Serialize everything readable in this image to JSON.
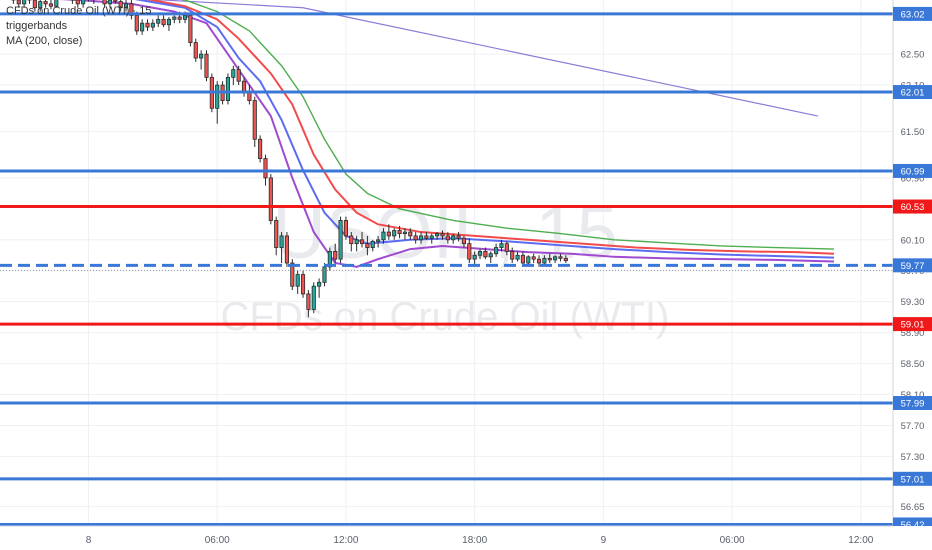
{
  "legend": {
    "line1": "CFDs on Crude Oil (WTI) · 15",
    "line2": "triggerbands",
    "line3": "MA (200, close)"
  },
  "watermark": {
    "symbol": "USOIL, 15",
    "name": "CFDs on Crude Oil (WTI)"
  },
  "colors": {
    "blue_level": "#3a78d8",
    "red_level": "#f01818",
    "candle_up": "#26a69a",
    "candle_down": "#ef5350",
    "ema_red": "#f24b4b",
    "ema_blue": "#5b6cf0",
    "ema_green": "#4fae4f",
    "ema_purple": "#a04ad0",
    "ma200": "#8e7ad8"
  },
  "chart_data": {
    "type": "candlestick",
    "ylim": [
      56.4,
      63.2
    ],
    "y_ticks": [
      "62.50",
      "62.10",
      "61.50",
      "60.90",
      "60.10",
      "59.70",
      "59.30",
      "58.90",
      "58.50",
      "58.10",
      "57.70",
      "57.30",
      "56.65"
    ],
    "x_ticks": [
      {
        "label": "8",
        "bar": 12
      },
      {
        "label": "06:00",
        "bar": 36
      },
      {
        "label": "12:00",
        "bar": 60
      },
      {
        "label": "18:00",
        "bar": 84
      },
      {
        "label": "9",
        "bar": 108
      },
      {
        "label": "06:00",
        "bar": 132
      },
      {
        "label": "12:00",
        "bar": 156
      }
    ],
    "x_bars_visible": [
      -4.5,
      162
    ],
    "horizontal_levels": [
      {
        "value": 63.02,
        "label": "63.02",
        "color": "blue"
      },
      {
        "value": 62.01,
        "label": "62.01",
        "color": "blue"
      },
      {
        "value": 60.99,
        "label": "60.99",
        "color": "blue"
      },
      {
        "value": 60.53,
        "label": "60.53",
        "color": "red"
      },
      {
        "value": 59.01,
        "label": "59.01",
        "color": "red"
      },
      {
        "value": 57.99,
        "label": "57.99",
        "color": "blue"
      },
      {
        "value": 57.01,
        "label": "57.01",
        "color": "blue"
      },
      {
        "value": 56.42,
        "label": "56.42",
        "color": "blue"
      }
    ],
    "current_price": {
      "value": 59.77,
      "label": "59.77"
    },
    "candles_ohlc": [
      [
        63.3,
        63.35,
        63.2,
        63.25
      ],
      [
        63.25,
        63.28,
        63.15,
        63.2
      ],
      [
        63.2,
        63.25,
        63.1,
        63.15
      ],
      [
        63.15,
        63.3,
        63.1,
        63.25
      ],
      [
        63.25,
        63.3,
        63.15,
        63.2
      ],
      [
        63.2,
        63.25,
        63.05,
        63.1
      ],
      [
        63.1,
        63.2,
        63.05,
        63.18
      ],
      [
        63.18,
        63.25,
        63.1,
        63.15
      ],
      [
        63.15,
        63.2,
        63.08,
        63.12
      ],
      [
        63.12,
        63.3,
        63.1,
        63.28
      ],
      [
        63.28,
        63.35,
        63.2,
        63.3
      ],
      [
        63.3,
        63.35,
        63.22,
        63.25
      ],
      [
        63.25,
        63.3,
        63.15,
        63.2
      ],
      [
        63.2,
        63.28,
        63.1,
        63.15
      ],
      [
        63.15,
        63.28,
        63.1,
        63.25
      ],
      [
        63.25,
        63.3,
        63.18,
        63.22
      ],
      [
        63.22,
        63.3,
        63.15,
        63.28
      ],
      [
        63.28,
        63.35,
        63.2,
        63.25
      ],
      [
        63.25,
        63.3,
        63.1,
        63.15
      ],
      [
        63.15,
        63.25,
        63.1,
        63.2
      ],
      [
        63.2,
        63.25,
        63.15,
        63.18
      ],
      [
        63.18,
        63.22,
        63.05,
        63.1
      ],
      [
        63.1,
        63.2,
        63.05,
        63.15
      ],
      [
        63.15,
        63.2,
        62.95,
        63.0
      ],
      [
        63.0,
        63.05,
        62.75,
        62.8
      ],
      [
        62.8,
        62.95,
        62.75,
        62.9
      ],
      [
        62.9,
        62.95,
        62.8,
        62.85
      ],
      [
        62.85,
        62.95,
        62.8,
        62.9
      ],
      [
        62.9,
        63.0,
        62.85,
        62.95
      ],
      [
        62.95,
        63.0,
        62.85,
        62.88
      ],
      [
        62.88,
        62.98,
        62.8,
        62.95
      ],
      [
        62.95,
        63.0,
        62.9,
        62.98
      ],
      [
        62.98,
        63.05,
        62.9,
        62.95
      ],
      [
        62.95,
        63.05,
        62.9,
        63.0
      ],
      [
        63.0,
        63.02,
        62.6,
        62.65
      ],
      [
        62.65,
        62.7,
        62.4,
        62.45
      ],
      [
        62.45,
        62.55,
        62.3,
        62.5
      ],
      [
        62.5,
        62.55,
        62.15,
        62.2
      ],
      [
        62.2,
        62.25,
        61.75,
        61.8
      ],
      [
        61.8,
        62.15,
        61.6,
        62.1
      ],
      [
        62.1,
        62.15,
        61.85,
        61.9
      ],
      [
        61.9,
        62.25,
        61.85,
        62.2
      ],
      [
        62.2,
        62.35,
        62.1,
        62.3
      ],
      [
        62.3,
        62.35,
        62.1,
        62.15
      ],
      [
        62.15,
        62.2,
        61.95,
        62.0
      ],
      [
        62.0,
        62.1,
        61.85,
        61.9
      ],
      [
        61.9,
        61.95,
        61.3,
        61.4
      ],
      [
        61.4,
        61.45,
        61.1,
        61.15
      ],
      [
        61.15,
        61.2,
        60.8,
        60.9
      ],
      [
        60.9,
        60.95,
        60.3,
        60.35
      ],
      [
        60.35,
        60.4,
        59.9,
        60.0
      ],
      [
        60.0,
        60.2,
        59.8,
        60.15
      ],
      [
        60.15,
        60.2,
        59.75,
        59.8
      ],
      [
        59.8,
        59.85,
        59.45,
        59.5
      ],
      [
        59.5,
        59.7,
        59.4,
        59.65
      ],
      [
        59.65,
        59.7,
        59.35,
        59.4
      ],
      [
        59.4,
        59.45,
        59.1,
        59.2
      ],
      [
        59.2,
        59.55,
        59.15,
        59.5
      ],
      [
        59.5,
        59.6,
        59.35,
        59.55
      ],
      [
        59.55,
        59.8,
        59.5,
        59.75
      ],
      [
        59.75,
        60.0,
        59.7,
        59.95
      ],
      [
        59.95,
        60.05,
        59.8,
        59.85
      ],
      [
        59.85,
        60.4,
        59.8,
        60.35
      ],
      [
        60.35,
        60.4,
        60.1,
        60.15
      ],
      [
        60.15,
        60.2,
        59.95,
        60.05
      ],
      [
        60.05,
        60.15,
        59.95,
        60.1
      ],
      [
        60.1,
        60.2,
        60.0,
        60.05
      ],
      [
        60.05,
        60.15,
        59.9,
        60.0
      ],
      [
        60.0,
        60.1,
        59.95,
        60.08
      ],
      [
        60.08,
        60.15,
        60.0,
        60.1
      ],
      [
        60.1,
        60.25,
        60.05,
        60.2
      ],
      [
        60.2,
        60.3,
        60.1,
        60.15
      ],
      [
        60.15,
        60.25,
        60.1,
        60.22
      ],
      [
        60.22,
        60.28,
        60.12,
        60.18
      ],
      [
        60.18,
        60.25,
        60.1,
        60.2
      ],
      [
        60.2,
        60.25,
        60.1,
        60.15
      ],
      [
        60.15,
        60.2,
        60.05,
        60.1
      ],
      [
        60.1,
        60.2,
        60.05,
        60.15
      ],
      [
        60.15,
        60.2,
        60.1,
        60.12
      ],
      [
        60.12,
        60.18,
        60.05,
        60.15
      ],
      [
        60.15,
        60.2,
        60.1,
        60.18
      ],
      [
        60.18,
        60.22,
        60.1,
        60.15
      ],
      [
        60.15,
        60.2,
        60.05,
        60.1
      ],
      [
        60.1,
        60.18,
        60.05,
        60.15
      ],
      [
        60.15,
        60.2,
        60.08,
        60.12
      ],
      [
        60.12,
        60.15,
        60.0,
        60.05
      ],
      [
        60.05,
        60.12,
        59.8,
        59.85
      ],
      [
        59.85,
        59.95,
        59.78,
        59.9
      ],
      [
        59.9,
        59.98,
        59.85,
        59.95
      ],
      [
        59.95,
        60.0,
        59.85,
        59.88
      ],
      [
        59.88,
        59.95,
        59.8,
        59.92
      ],
      [
        59.92,
        60.05,
        59.88,
        60.0
      ],
      [
        60.0,
        60.1,
        59.95,
        60.05
      ],
      [
        60.05,
        60.08,
        59.9,
        59.95
      ],
      [
        59.95,
        60.0,
        59.8,
        59.85
      ],
      [
        59.85,
        59.95,
        59.82,
        59.9
      ],
      [
        59.9,
        59.95,
        59.75,
        59.8
      ],
      [
        59.8,
        59.9,
        59.78,
        59.88
      ],
      [
        59.88,
        59.92,
        59.8,
        59.85
      ],
      [
        59.85,
        59.9,
        59.75,
        59.8
      ],
      [
        59.8,
        59.9,
        59.78,
        59.86
      ],
      [
        59.86,
        59.92,
        59.8,
        59.84
      ],
      [
        59.84,
        59.9,
        59.8,
        59.88
      ],
      [
        59.88,
        59.92,
        59.82,
        59.86
      ],
      [
        59.86,
        59.9,
        59.8,
        59.83
      ]
    ],
    "first_candle_bar": -3,
    "ma200": [
      [
        0,
        63.3
      ],
      [
        52,
        63.1
      ],
      [
        148,
        61.7
      ]
    ],
    "ema_lines": [
      {
        "color": "purple",
        "points": [
          [
            -3,
            63.25
          ],
          [
            10,
            63.2
          ],
          [
            20,
            63.15
          ],
          [
            28,
            63.05
          ],
          [
            34,
            62.9
          ],
          [
            38,
            62.5
          ],
          [
            42,
            62.1
          ],
          [
            46,
            61.7
          ],
          [
            50,
            60.9
          ],
          [
            54,
            60.2
          ],
          [
            58,
            59.8
          ],
          [
            62,
            59.75
          ],
          [
            66,
            59.85
          ],
          [
            72,
            59.98
          ],
          [
            78,
            60.02
          ],
          [
            86,
            59.98
          ],
          [
            94,
            59.94
          ],
          [
            102,
            59.92
          ],
          [
            110,
            59.88
          ],
          [
            120,
            59.86
          ],
          [
            130,
            59.85
          ],
          [
            140,
            59.84
          ],
          [
            151,
            59.82
          ]
        ]
      },
      {
        "color": "blue",
        "points": [
          [
            -3,
            63.3
          ],
          [
            20,
            63.22
          ],
          [
            30,
            63.1
          ],
          [
            36,
            62.85
          ],
          [
            40,
            62.45
          ],
          [
            44,
            62.15
          ],
          [
            48,
            61.65
          ],
          [
            52,
            61.0
          ],
          [
            56,
            60.45
          ],
          [
            60,
            60.15
          ],
          [
            64,
            60.05
          ],
          [
            72,
            60.1
          ],
          [
            80,
            60.12
          ],
          [
            90,
            60.08
          ],
          [
            100,
            60.03
          ],
          [
            110,
            59.98
          ],
          [
            120,
            59.94
          ],
          [
            130,
            59.91
          ],
          [
            140,
            59.89
          ],
          [
            151,
            59.87
          ]
        ]
      },
      {
        "color": "red",
        "points": [
          [
            -3,
            63.35
          ],
          [
            20,
            63.25
          ],
          [
            30,
            63.12
          ],
          [
            36,
            62.95
          ],
          [
            40,
            62.7
          ],
          [
            46,
            62.25
          ],
          [
            50,
            61.85
          ],
          [
            54,
            61.2
          ],
          [
            58,
            60.75
          ],
          [
            62,
            60.45
          ],
          [
            66,
            60.3
          ],
          [
            74,
            60.2
          ],
          [
            84,
            60.15
          ],
          [
            94,
            60.1
          ],
          [
            104,
            60.05
          ],
          [
            114,
            60.0
          ],
          [
            124,
            59.97
          ],
          [
            134,
            59.95
          ],
          [
            144,
            59.94
          ],
          [
            151,
            59.92
          ]
        ]
      },
      {
        "color": "green",
        "points": [
          [
            -3,
            63.4
          ],
          [
            20,
            63.3
          ],
          [
            30,
            63.2
          ],
          [
            36,
            63.05
          ],
          [
            42,
            62.8
          ],
          [
            48,
            62.35
          ],
          [
            52,
            61.95
          ],
          [
            56,
            61.4
          ],
          [
            60,
            60.95
          ],
          [
            64,
            60.7
          ],
          [
            70,
            60.5
          ],
          [
            80,
            60.35
          ],
          [
            90,
            60.25
          ],
          [
            100,
            60.18
          ],
          [
            110,
            60.1
          ],
          [
            120,
            60.06
          ],
          [
            130,
            60.02
          ],
          [
            140,
            60.0
          ],
          [
            151,
            59.98
          ]
        ]
      }
    ]
  }
}
